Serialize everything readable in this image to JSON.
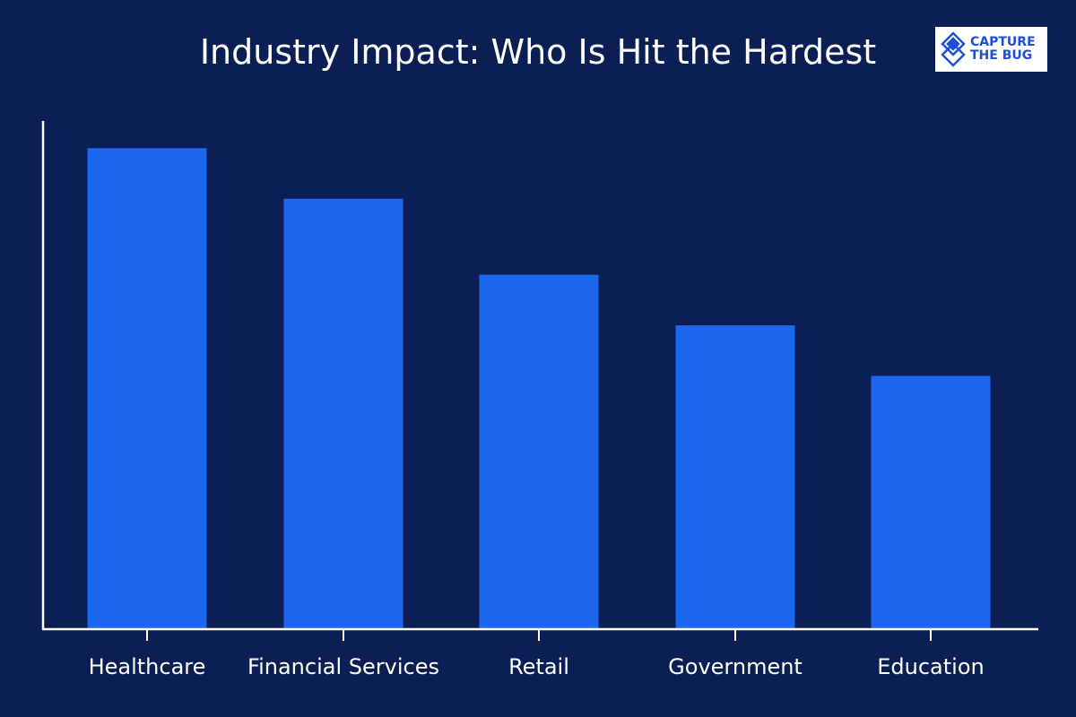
{
  "chart_data": {
    "type": "bar",
    "title": "Industry Impact: Who Is Hit the Hardest",
    "categories": [
      "Healthcare",
      "Financial Services",
      "Retail",
      "Government",
      "Education"
    ],
    "values": [
      95,
      85,
      70,
      60,
      50
    ],
    "xlabel": "",
    "ylabel": "",
    "ylim": [
      0,
      100
    ],
    "grid": false,
    "bar_color": "#1d67ee",
    "axis_color": "#ffffff",
    "background": "#0b1f55"
  },
  "logo": {
    "text_line1": "CAPTURE",
    "text_line2": "THE BUG",
    "icon": "bug-diamond-icon",
    "color": "#1d4ed8"
  }
}
